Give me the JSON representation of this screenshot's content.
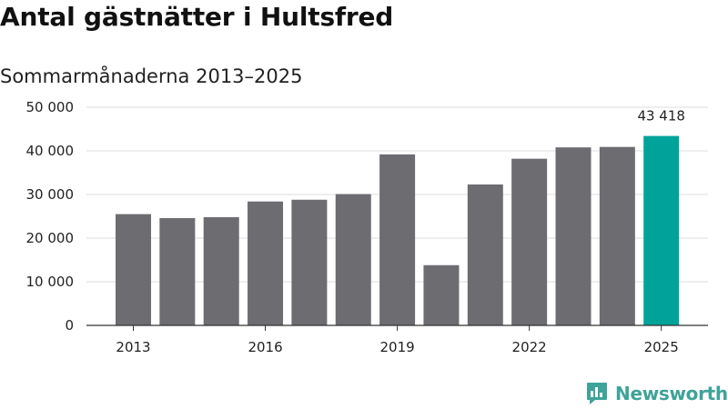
{
  "title": "Antal gästnätter i Hultsfred",
  "subtitle": "Sommarmånaderna 2013–2025",
  "brand": {
    "name": "Newsworthy",
    "icon": "newsworthy-logo-icon",
    "color": "#3ea39a"
  },
  "chart_data": {
    "type": "bar",
    "categories": [
      "2013",
      "2014",
      "2015",
      "2016",
      "2017",
      "2018",
      "2019",
      "2020",
      "2021",
      "2022",
      "2023",
      "2024",
      "2025"
    ],
    "x_tick_labels": [
      "2013",
      "2016",
      "2019",
      "2022",
      "2025"
    ],
    "values": [
      25500,
      24600,
      24800,
      28400,
      28800,
      30100,
      39200,
      13800,
      32300,
      38200,
      40800,
      40900,
      43418
    ],
    "ylim": [
      0,
      50000
    ],
    "y_ticks": [
      0,
      10000,
      20000,
      30000,
      40000,
      50000
    ],
    "y_tick_labels": [
      "0",
      "10 000",
      "20 000",
      "30 000",
      "40 000",
      "50 000"
    ],
    "highlight_index": 12,
    "highlight_label": "43 418",
    "bar_color": "#6d6c71",
    "highlight_color": "#00a39a",
    "grid": true
  }
}
